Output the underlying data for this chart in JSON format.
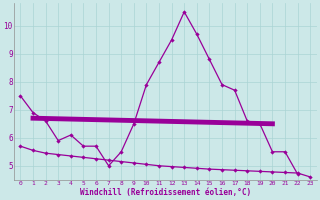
{
  "xlabel": "Windchill (Refroidissement éolien,°C)",
  "background_color": "#cce8e8",
  "line_color": "#990099",
  "grid_color": "#aad4d4",
  "xlim": [
    -0.5,
    23.5
  ],
  "ylim": [
    4.5,
    10.8
  ],
  "yticks": [
    5,
    6,
    7,
    8,
    9,
    10
  ],
  "xticks": [
    0,
    1,
    2,
    3,
    4,
    5,
    6,
    7,
    8,
    9,
    10,
    11,
    12,
    13,
    14,
    15,
    16,
    17,
    18,
    19,
    20,
    21,
    22,
    23
  ],
  "line1_x": [
    0,
    1,
    2,
    3,
    4,
    5,
    6,
    7,
    8,
    9,
    10,
    11,
    12,
    13,
    14,
    15,
    16,
    17,
    18,
    19,
    20,
    21,
    22
  ],
  "line1_y": [
    7.5,
    6.9,
    6.6,
    5.9,
    6.1,
    5.7,
    5.7,
    5.0,
    5.5,
    6.5,
    7.9,
    8.7,
    9.5,
    10.5,
    9.7,
    8.8,
    7.9,
    7.7,
    6.6,
    6.5,
    5.5,
    5.5,
    4.7
  ],
  "line2_x": [
    1,
    20
  ],
  "line2_y": [
    6.7,
    6.5
  ],
  "line3_x": [
    0,
    1,
    2,
    3,
    4,
    5,
    6,
    7,
    8,
    9,
    10,
    11,
    12,
    13,
    14,
    15,
    16,
    17,
    18,
    19,
    20,
    21,
    22,
    23
  ],
  "line3_y": [
    5.7,
    5.55,
    5.45,
    5.4,
    5.35,
    5.3,
    5.25,
    5.2,
    5.15,
    5.1,
    5.05,
    5.0,
    4.97,
    4.94,
    4.91,
    4.88,
    4.86,
    4.84,
    4.82,
    4.8,
    4.78,
    4.76,
    4.74,
    4.6
  ]
}
